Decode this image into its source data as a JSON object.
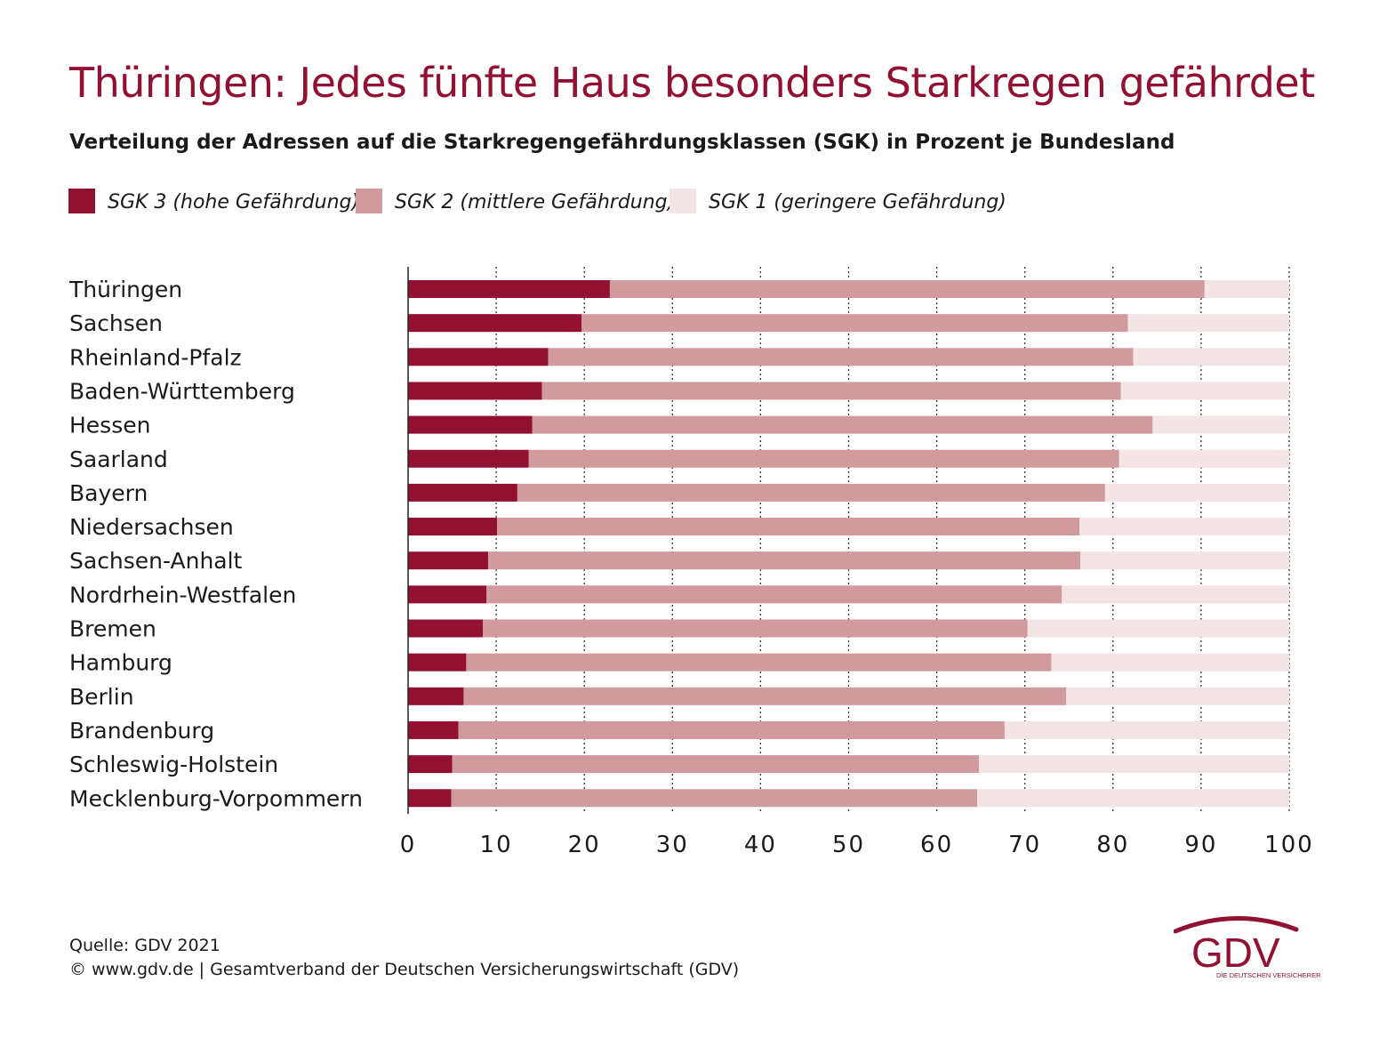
{
  "title": "Thüringen: Jedes fünfte Haus besonders Starkregen gefährdet",
  "subtitle": "Verteilung der Adressen auf die Starkregengefährdungsklassen (SGK) in Prozent je Bundesland",
  "colors": {
    "sgk3": "#921133",
    "sgk2": "#d09a9e",
    "sgk1": "#f3e4e5",
    "title": "#921133"
  },
  "chart_data": {
    "type": "bar",
    "orientation": "horizontal",
    "stacked": true,
    "title": "Thüringen: Jedes fünfte Haus besonders Starkregen gefährdet",
    "subtitle": "Verteilung der Adressen auf die Starkregengefährdungsklassen (SGK) in Prozent je Bundesland",
    "xlabel": "",
    "ylabel": "",
    "xlim": [
      0,
      100
    ],
    "x_ticks": [
      "0",
      "10",
      "20",
      "30",
      "40",
      "50",
      "60",
      "70",
      "80",
      "90",
      "100"
    ],
    "grid": "vertical dotted",
    "legend_position": "top-left",
    "categories": [
      "Thüringen",
      "Sachsen",
      "Rheinland-Pfalz",
      "Baden-Württemberg",
      "Hessen",
      "Saarland",
      "Bayern",
      "Niedersachsen",
      "Sachsen-Anhalt",
      "Nordrhein-Westfalen",
      "Bremen",
      "Hamburg",
      "Berlin",
      "Brandenburg",
      "Schleswig-Holstein",
      "Mecklenburg-Vorpommern"
    ],
    "series": [
      {
        "name": "SGK 3 (hohe Gefährdung)",
        "color": "#921133",
        "values": [
          22.9,
          19.7,
          15.9,
          15.2,
          14.1,
          13.7,
          12.4,
          10.1,
          9.1,
          8.9,
          8.5,
          6.6,
          6.3,
          5.7,
          5.0,
          4.9
        ]
      },
      {
        "name": "SGK 2 (mittlere Gefährdung)",
        "color": "#d09a9e",
        "values": [
          67.5,
          62.0,
          66.4,
          65.7,
          70.4,
          67.0,
          66.7,
          66.1,
          67.2,
          65.3,
          61.8,
          66.4,
          68.4,
          62.0,
          59.8,
          59.7
        ]
      },
      {
        "name": "SGK 1 (geringere Gefährdung)",
        "color": "#f3e4e5",
        "values": [
          9.6,
          18.3,
          17.7,
          19.1,
          15.5,
          19.3,
          20.9,
          23.8,
          23.7,
          25.8,
          29.7,
          27.0,
          25.3,
          32.3,
          35.2,
          35.4
        ]
      }
    ]
  },
  "footer": {
    "source": "Quelle: GDV 2021",
    "copyright": "© www.gdv.de | Gesamtverband der Deutschen Versicherungswirtschaft (GDV)"
  },
  "logo": {
    "text": "GDV",
    "tagline": "DIE DEUTSCHEN VERSICHERER"
  }
}
